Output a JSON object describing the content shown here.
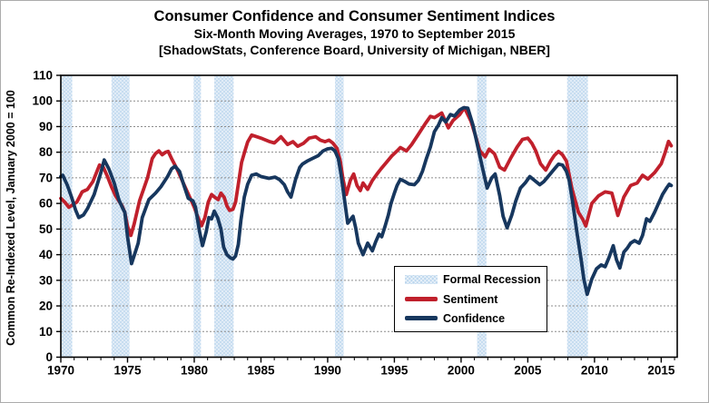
{
  "header": {
    "title": "Consumer Confidence and Consumer Sentiment Indices",
    "subtitle": "Six-Month Moving Averages, 1970 to September 2015",
    "source_line": "[ShadowStats, Conference Board, University of Michigan, NBER]"
  },
  "legend": {
    "items": [
      {
        "label": "Formal Recession",
        "type": "band",
        "color": "#bdd7ee"
      },
      {
        "label": "Sentiment",
        "type": "line",
        "color": "#c0202c"
      },
      {
        "label": "Confidence",
        "type": "line",
        "color": "#17375e"
      }
    ]
  },
  "chart_data": {
    "type": "line",
    "title": "Consumer Confidence and Consumer Sentiment Indices",
    "subtitle": "Six-Month Moving Averages, 1970 to September 2015",
    "xlabel": "",
    "ylabel": "Common Re-Indexed Level, January 2000 = 100",
    "xlim": [
      1970,
      2016.2
    ],
    "ylim": [
      0,
      110
    ],
    "x_ticks": [
      1970,
      1975,
      1980,
      1985,
      1990,
      1995,
      2000,
      2005,
      2010,
      2015
    ],
    "y_ticks": [
      0,
      10,
      20,
      30,
      40,
      50,
      60,
      70,
      80,
      90,
      100,
      110
    ],
    "grid": "horizontal",
    "legend_position": "inside-lower-right",
    "colors": {
      "sentiment": "#c0202c",
      "confidence": "#17375e",
      "recession_band": "#bdd7ee",
      "gridline": "#8c8c8c",
      "axis": "#000000"
    },
    "recessions": [
      [
        1970.0,
        1970.85
      ],
      [
        1973.8,
        1975.15
      ],
      [
        1979.95,
        1980.5
      ],
      [
        1981.5,
        1982.95
      ],
      [
        1990.55,
        1991.2
      ],
      [
        2001.2,
        2001.9
      ],
      [
        2007.95,
        2009.5
      ]
    ],
    "series": [
      {
        "name": "Sentiment",
        "color": "#c0202c",
        "points": [
          [
            1970.0,
            62
          ],
          [
            1970.3,
            60.5
          ],
          [
            1970.6,
            58.5
          ],
          [
            1970.9,
            59.5
          ],
          [
            1971.2,
            60.5
          ],
          [
            1971.6,
            64.5
          ],
          [
            1972.0,
            65.5
          ],
          [
            1972.4,
            68.5
          ],
          [
            1972.9,
            75
          ],
          [
            1973.2,
            74
          ],
          [
            1973.5,
            70.5
          ],
          [
            1973.8,
            66.5
          ],
          [
            1974.1,
            63
          ],
          [
            1974.35,
            61
          ],
          [
            1974.6,
            59
          ],
          [
            1974.8,
            56.5
          ],
          [
            1975.0,
            51
          ],
          [
            1975.25,
            47.5
          ],
          [
            1975.5,
            52
          ],
          [
            1975.9,
            61
          ],
          [
            1976.2,
            65.5
          ],
          [
            1976.5,
            70
          ],
          [
            1976.85,
            77.5
          ],
          [
            1977.1,
            79.5
          ],
          [
            1977.35,
            80.5
          ],
          [
            1977.6,
            79
          ],
          [
            1977.85,
            80
          ],
          [
            1978.05,
            80.3
          ],
          [
            1978.3,
            77.5
          ],
          [
            1978.7,
            73.5
          ],
          [
            1979.0,
            70
          ],
          [
            1979.35,
            66
          ],
          [
            1979.7,
            62
          ],
          [
            1980.0,
            58.5
          ],
          [
            1980.25,
            55
          ],
          [
            1980.55,
            51.3
          ],
          [
            1980.8,
            54.5
          ],
          [
            1981.05,
            60.5
          ],
          [
            1981.3,
            63.5
          ],
          [
            1981.55,
            62.4
          ],
          [
            1981.8,
            61.5
          ],
          [
            1982.0,
            64
          ],
          [
            1982.25,
            62.4
          ],
          [
            1982.45,
            59
          ],
          [
            1982.65,
            57.3
          ],
          [
            1982.9,
            57.7
          ],
          [
            1983.1,
            60.5
          ],
          [
            1983.3,
            67.5
          ],
          [
            1983.55,
            76
          ],
          [
            1983.8,
            80.5
          ],
          [
            1984.0,
            84
          ],
          [
            1984.3,
            86.7
          ],
          [
            1984.7,
            86
          ],
          [
            1985.1,
            85.3
          ],
          [
            1985.6,
            84.2
          ],
          [
            1986.0,
            83.6
          ],
          [
            1986.5,
            86
          ],
          [
            1987.0,
            83
          ],
          [
            1987.4,
            84.1
          ],
          [
            1987.75,
            82.3
          ],
          [
            1988.2,
            83.5
          ],
          [
            1988.6,
            85.5
          ],
          [
            1989.1,
            86
          ],
          [
            1989.45,
            84.7
          ],
          [
            1989.8,
            84.1
          ],
          [
            1990.1,
            84.7
          ],
          [
            1990.4,
            83.5
          ],
          [
            1990.7,
            81.5
          ],
          [
            1990.95,
            76.5
          ],
          [
            1991.15,
            69.5
          ],
          [
            1991.4,
            63.5
          ],
          [
            1991.7,
            69
          ],
          [
            1991.95,
            71.5
          ],
          [
            1992.2,
            67
          ],
          [
            1992.45,
            65
          ],
          [
            1992.65,
            68
          ],
          [
            1993.0,
            65.5
          ],
          [
            1993.35,
            69
          ],
          [
            1993.7,
            71.5
          ],
          [
            1994.0,
            73.5
          ],
          [
            1994.4,
            76
          ],
          [
            1994.8,
            78.5
          ],
          [
            1995.2,
            80.5
          ],
          [
            1995.45,
            81.8
          ],
          [
            1995.9,
            80.5
          ],
          [
            1996.3,
            83
          ],
          [
            1996.8,
            87
          ],
          [
            1997.3,
            91
          ],
          [
            1997.7,
            94
          ],
          [
            1998.0,
            93.5
          ],
          [
            1998.55,
            95.3
          ],
          [
            1999.05,
            89.5
          ],
          [
            1999.4,
            92.4
          ],
          [
            1999.9,
            94.7
          ],
          [
            2000.25,
            97.4
          ],
          [
            2000.75,
            92
          ],
          [
            2001.1,
            86
          ],
          [
            2001.4,
            80.6
          ],
          [
            2001.8,
            78.2
          ],
          [
            2002.1,
            81.2
          ],
          [
            2002.5,
            79.4
          ],
          [
            2002.9,
            74.1
          ],
          [
            2003.25,
            73
          ],
          [
            2003.7,
            77.5
          ],
          [
            2004.2,
            82
          ],
          [
            2004.6,
            85
          ],
          [
            2005.0,
            85.5
          ],
          [
            2005.3,
            83.5
          ],
          [
            2005.6,
            80.5
          ],
          [
            2005.95,
            75.5
          ],
          [
            2006.35,
            73
          ],
          [
            2006.7,
            76.5
          ],
          [
            2007.0,
            78.8
          ],
          [
            2007.3,
            80.3
          ],
          [
            2007.6,
            79
          ],
          [
            2007.9,
            76.5
          ],
          [
            2008.3,
            66
          ],
          [
            2008.8,
            56.5
          ],
          [
            2009.1,
            54
          ],
          [
            2009.35,
            51.2
          ],
          [
            2009.8,
            60
          ],
          [
            2010.3,
            63
          ],
          [
            2010.8,
            64.5
          ],
          [
            2011.3,
            64
          ],
          [
            2011.75,
            55.3
          ],
          [
            2012.2,
            62.5
          ],
          [
            2012.7,
            67
          ],
          [
            2013.2,
            68
          ],
          [
            2013.6,
            71
          ],
          [
            2014.0,
            69.5
          ],
          [
            2014.5,
            72
          ],
          [
            2015.0,
            75.5
          ],
          [
            2015.3,
            80
          ],
          [
            2015.55,
            84.2
          ],
          [
            2015.75,
            82.5
          ]
        ]
      },
      {
        "name": "Confidence",
        "color": "#17375e",
        "points": [
          [
            1970.0,
            70.5
          ],
          [
            1970.15,
            71
          ],
          [
            1970.5,
            67
          ],
          [
            1970.8,
            62.5
          ],
          [
            1971.1,
            57.5
          ],
          [
            1971.35,
            54.5
          ],
          [
            1971.7,
            55.5
          ],
          [
            1972.0,
            58
          ],
          [
            1972.5,
            63.5
          ],
          [
            1973.0,
            72
          ],
          [
            1973.25,
            77
          ],
          [
            1973.6,
            73.5
          ],
          [
            1974.0,
            68
          ],
          [
            1974.35,
            61.5
          ],
          [
            1974.6,
            58.5
          ],
          [
            1974.8,
            56.5
          ],
          [
            1975.0,
            47
          ],
          [
            1975.3,
            36.5
          ],
          [
            1975.55,
            40.5
          ],
          [
            1975.8,
            44.5
          ],
          [
            1976.1,
            54.5
          ],
          [
            1976.6,
            61.5
          ],
          [
            1977.1,
            64
          ],
          [
            1977.5,
            66.5
          ],
          [
            1978.0,
            70.5
          ],
          [
            1978.3,
            73.5
          ],
          [
            1978.55,
            74.5
          ],
          [
            1978.9,
            72.5
          ],
          [
            1979.2,
            67.5
          ],
          [
            1979.55,
            62
          ],
          [
            1979.9,
            61
          ],
          [
            1980.1,
            58.5
          ],
          [
            1980.4,
            49
          ],
          [
            1980.62,
            43.5
          ],
          [
            1980.9,
            49
          ],
          [
            1981.1,
            54.5
          ],
          [
            1981.3,
            54
          ],
          [
            1981.5,
            57
          ],
          [
            1981.75,
            54.5
          ],
          [
            1982.0,
            50
          ],
          [
            1982.2,
            43
          ],
          [
            1982.45,
            40
          ],
          [
            1982.7,
            38.8
          ],
          [
            1982.9,
            38.3
          ],
          [
            1983.1,
            39.5
          ],
          [
            1983.3,
            44
          ],
          [
            1983.5,
            53.5
          ],
          [
            1983.75,
            62.5
          ],
          [
            1984.0,
            67.5
          ],
          [
            1984.3,
            71
          ],
          [
            1984.65,
            71.5
          ],
          [
            1985.0,
            70.5
          ],
          [
            1985.6,
            69.8
          ],
          [
            1986.05,
            70.3
          ],
          [
            1986.4,
            69.3
          ],
          [
            1986.75,
            67.3
          ],
          [
            1987.0,
            64.5
          ],
          [
            1987.25,
            62.5
          ],
          [
            1987.6,
            69.5
          ],
          [
            1987.9,
            74
          ],
          [
            1988.1,
            75.3
          ],
          [
            1988.45,
            76.5
          ],
          [
            1988.85,
            77.5
          ],
          [
            1989.3,
            78.7
          ],
          [
            1989.65,
            80.5
          ],
          [
            1990.0,
            81.3
          ],
          [
            1990.3,
            81.5
          ],
          [
            1990.55,
            80.5
          ],
          [
            1990.8,
            77.5
          ],
          [
            1991.0,
            71.5
          ],
          [
            1991.25,
            62
          ],
          [
            1991.5,
            52.3
          ],
          [
            1991.9,
            55
          ],
          [
            1992.1,
            50.5
          ],
          [
            1992.3,
            44.5
          ],
          [
            1992.65,
            40
          ],
          [
            1993.0,
            44.5
          ],
          [
            1993.35,
            41.5
          ],
          [
            1993.6,
            45
          ],
          [
            1993.85,
            48
          ],
          [
            1994.05,
            47
          ],
          [
            1994.3,
            51
          ],
          [
            1994.55,
            55.5
          ],
          [
            1994.75,
            60
          ],
          [
            1995.0,
            64
          ],
          [
            1995.2,
            67
          ],
          [
            1995.45,
            69.4
          ],
          [
            1995.8,
            68.5
          ],
          [
            1996.1,
            67.6
          ],
          [
            1996.5,
            67.3
          ],
          [
            1996.8,
            69
          ],
          [
            1997.1,
            72.5
          ],
          [
            1997.4,
            77.5
          ],
          [
            1997.7,
            82
          ],
          [
            1998.0,
            88
          ],
          [
            1998.3,
            90.5
          ],
          [
            1998.55,
            93.5
          ],
          [
            1998.85,
            91.8
          ],
          [
            1999.2,
            94.7
          ],
          [
            1999.5,
            94.1
          ],
          [
            1999.9,
            96.5
          ],
          [
            2000.2,
            97.4
          ],
          [
            2000.5,
            97.2
          ],
          [
            2000.9,
            90.5
          ],
          [
            2001.2,
            83.5
          ],
          [
            2001.6,
            74
          ],
          [
            2001.95,
            66
          ],
          [
            2002.3,
            70
          ],
          [
            2002.55,
            71.5
          ],
          [
            2002.9,
            63
          ],
          [
            2003.15,
            55
          ],
          [
            2003.45,
            50.5
          ],
          [
            2003.8,
            55.5
          ],
          [
            2004.1,
            61
          ],
          [
            2004.45,
            66
          ],
          [
            2004.8,
            68
          ],
          [
            2005.15,
            70.5
          ],
          [
            2005.5,
            69
          ],
          [
            2005.9,
            67.3
          ],
          [
            2006.2,
            68.5
          ],
          [
            2006.6,
            71
          ],
          [
            2007.0,
            73.5
          ],
          [
            2007.3,
            75.3
          ],
          [
            2007.6,
            75
          ],
          [
            2007.9,
            72.5
          ],
          [
            2008.1,
            69
          ],
          [
            2008.35,
            61
          ],
          [
            2008.7,
            48
          ],
          [
            2009.0,
            38
          ],
          [
            2009.2,
            30.5
          ],
          [
            2009.45,
            24.5
          ],
          [
            2009.8,
            30.5
          ],
          [
            2010.15,
            34.5
          ],
          [
            2010.5,
            36
          ],
          [
            2010.8,
            35.3
          ],
          [
            2011.1,
            39
          ],
          [
            2011.4,
            43.5
          ],
          [
            2011.65,
            38
          ],
          [
            2011.9,
            34.8
          ],
          [
            2012.2,
            41
          ],
          [
            2012.45,
            42.5
          ],
          [
            2012.7,
            44.5
          ],
          [
            2013.0,
            45.5
          ],
          [
            2013.35,
            44.5
          ],
          [
            2013.6,
            47.5
          ],
          [
            2013.9,
            54
          ],
          [
            2014.15,
            53
          ],
          [
            2014.5,
            56.5
          ],
          [
            2014.8,
            60
          ],
          [
            2015.1,
            63.5
          ],
          [
            2015.4,
            66
          ],
          [
            2015.6,
            67.5
          ],
          [
            2015.75,
            67
          ]
        ]
      }
    ]
  }
}
